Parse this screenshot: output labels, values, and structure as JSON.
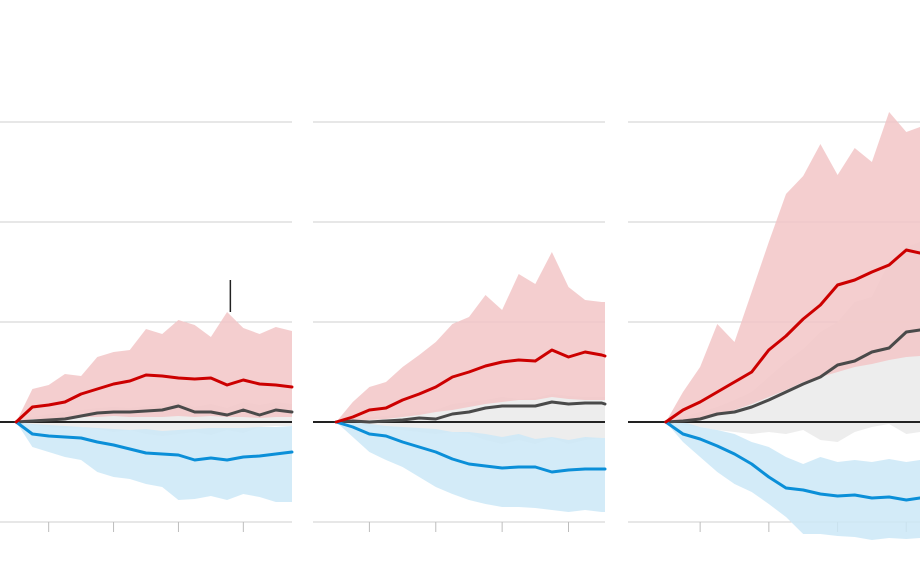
{
  "chart_data": {
    "type": "area",
    "colors": {
      "up_line": "#cc0000",
      "up_band": "#f2c5c7",
      "mid_line": "#4a4a4a",
      "mid_band": "#eaeaea",
      "down_line": "#0b8fd8",
      "down_band": "#cbe8f7",
      "grid": "#cfcfcf",
      "zero_line": "#222222"
    },
    "ylim": [
      -1,
      3
    ],
    "yticks": [
      -1,
      0,
      1,
      2,
      3
    ],
    "grid": true,
    "panels": [
      {
        "xlim": [
          -0.5,
          8.5
        ],
        "x_start": 0,
        "xticks": [
          1,
          3,
          5,
          7
        ],
        "marker_x": 6.6,
        "up": {
          "x": [
            0,
            0.5,
            1,
            1.5,
            2,
            2.5,
            3,
            3.5,
            4,
            4.5,
            5,
            5.5,
            6,
            6.5,
            7,
            7.5,
            8,
            8.5
          ],
          "values": [
            0,
            0.15,
            0.17,
            0.2,
            0.28,
            0.33,
            0.38,
            0.41,
            0.47,
            0.46,
            0.44,
            0.43,
            0.44,
            0.37,
            0.42,
            0.38,
            0.37,
            0.35
          ],
          "high": [
            0,
            0.33,
            0.37,
            0.48,
            0.46,
            0.65,
            0.7,
            0.72,
            0.93,
            0.88,
            1.02,
            0.97,
            0.85,
            1.1,
            0.94,
            0.88,
            0.95,
            0.91
          ],
          "low": [
            0,
            0.03,
            0.03,
            0.02,
            0.05,
            0.05,
            0.06,
            0.05,
            0.05,
            0.05,
            0.06,
            0.05,
            0.06,
            0.05,
            0.05,
            0.04,
            0.05,
            0.05
          ]
        },
        "mid": {
          "x": [
            0,
            0.5,
            1,
            1.5,
            2,
            2.5,
            3,
            3.5,
            4,
            4.5,
            5,
            5.5,
            6,
            6.5,
            7,
            7.5,
            8,
            8.5
          ],
          "values": [
            0,
            0.01,
            0.02,
            0.03,
            0.06,
            0.09,
            0.1,
            0.1,
            0.11,
            0.12,
            0.16,
            0.1,
            0.1,
            0.07,
            0.12,
            0.07,
            0.12,
            0.1
          ],
          "high": [
            0,
            0.05,
            0.08,
            0.1,
            0.12,
            0.14,
            0.15,
            0.14,
            0.16,
            0.18,
            0.2,
            0.15,
            0.18,
            0.14,
            0.2,
            0.17,
            0.2,
            0.18
          ],
          "low": [
            0,
            -0.03,
            -0.05,
            -0.06,
            -0.05,
            -0.07,
            -0.1,
            -0.08,
            -0.12,
            -0.14,
            -0.12,
            -0.1,
            -0.13,
            -0.08,
            -0.11,
            -0.05,
            -0.04,
            -0.04
          ]
        },
        "down": {
          "x": [
            0,
            0.5,
            1,
            1.5,
            2,
            2.5,
            3,
            3.5,
            4,
            4.5,
            5,
            5.5,
            6,
            6.5,
            7,
            7.5,
            8,
            8.5
          ],
          "values": [
            0,
            -0.12,
            -0.14,
            -0.15,
            -0.16,
            -0.2,
            -0.23,
            -0.27,
            -0.31,
            -0.32,
            -0.33,
            -0.38,
            -0.36,
            -0.38,
            -0.35,
            -0.34,
            -0.32,
            -0.3
          ],
          "high": [
            0,
            -0.02,
            -0.03,
            -0.04,
            -0.05,
            -0.06,
            -0.07,
            -0.08,
            -0.07,
            -0.09,
            -0.08,
            -0.07,
            -0.06,
            -0.06,
            -0.06,
            -0.05,
            -0.05,
            -0.04
          ],
          "low": [
            0,
            -0.25,
            -0.3,
            -0.35,
            -0.38,
            -0.5,
            -0.55,
            -0.57,
            -0.62,
            -0.65,
            -0.78,
            -0.77,
            -0.74,
            -0.78,
            -0.72,
            -0.75,
            -0.8,
            -0.8
          ]
        }
      },
      {
        "xlim": [
          -0.7,
          8.1
        ],
        "x_start": 0,
        "xticks": [
          1,
          3,
          5,
          7
        ],
        "up": {
          "x": [
            0,
            0.5,
            1,
            1.5,
            2,
            2.5,
            3,
            3.5,
            4,
            4.5,
            5,
            5.5,
            6,
            6.5,
            7,
            7.5,
            8,
            8.1
          ],
          "values": [
            0,
            0.05,
            0.12,
            0.14,
            0.22,
            0.28,
            0.35,
            0.45,
            0.5,
            0.56,
            0.6,
            0.62,
            0.61,
            0.72,
            0.65,
            0.7,
            0.67,
            0.66
          ],
          "high": [
            0,
            0.2,
            0.35,
            0.4,
            0.55,
            0.67,
            0.8,
            0.98,
            1.05,
            1.27,
            1.12,
            1.48,
            1.38,
            1.7,
            1.35,
            1.22,
            1.2,
            1.2
          ],
          "low": [
            0,
            0.0,
            0.02,
            0.03,
            0.05,
            0.07,
            0.1,
            0.12,
            0.15,
            0.18,
            0.2,
            0.22,
            0.22,
            0.25,
            0.23,
            0.22,
            0.22,
            0.22
          ]
        },
        "mid": {
          "x": [
            0,
            0.5,
            1,
            1.5,
            2,
            2.5,
            3,
            3.5,
            4,
            4.5,
            5,
            5.5,
            6,
            6.5,
            7,
            7.5,
            8,
            8.1
          ],
          "values": [
            0,
            0.01,
            0.0,
            0.01,
            0.02,
            0.04,
            0.03,
            0.08,
            0.1,
            0.14,
            0.16,
            0.16,
            0.16,
            0.2,
            0.18,
            0.19,
            0.19,
            0.18
          ],
          "high": [
            0,
            0.03,
            0.05,
            0.06,
            0.08,
            0.1,
            0.12,
            0.18,
            0.2,
            0.22,
            0.25,
            0.23,
            0.24,
            0.28,
            0.26,
            0.25,
            0.25,
            0.25
          ],
          "low": [
            0,
            -0.02,
            -0.05,
            -0.06,
            -0.08,
            -0.1,
            -0.12,
            -0.1,
            -0.12,
            -0.18,
            -0.22,
            -0.18,
            -0.22,
            -0.16,
            -0.22,
            -0.18,
            -0.16,
            -0.16
          ]
        },
        "down": {
          "x": [
            0,
            0.5,
            1,
            1.5,
            2,
            2.5,
            3,
            3.5,
            4,
            4.5,
            5,
            5.5,
            6,
            6.5,
            7,
            7.5,
            8,
            8.1
          ],
          "values": [
            0,
            -0.05,
            -0.12,
            -0.14,
            -0.2,
            -0.25,
            -0.3,
            -0.37,
            -0.42,
            -0.44,
            -0.46,
            -0.45,
            -0.45,
            -0.5,
            -0.48,
            -0.47,
            -0.47,
            -0.47
          ],
          "high": [
            0,
            0.0,
            -0.02,
            -0.04,
            -0.05,
            -0.06,
            -0.07,
            -0.1,
            -0.1,
            -0.12,
            -0.15,
            -0.12,
            -0.17,
            -0.15,
            -0.18,
            -0.15,
            -0.16,
            -0.16
          ],
          "low": [
            0,
            -0.15,
            -0.3,
            -0.38,
            -0.45,
            -0.55,
            -0.65,
            -0.72,
            -0.78,
            -0.82,
            -0.85,
            -0.85,
            -0.86,
            -0.88,
            -0.9,
            -0.88,
            -0.9,
            -0.9
          ]
        }
      },
      {
        "xlim": [
          -1.1,
          7.4
        ],
        "x_start": 0,
        "xticks": [
          1,
          3,
          5,
          7
        ],
        "up": {
          "x": [
            0,
            0.5,
            1,
            1.5,
            2,
            2.5,
            3,
            3.5,
            4,
            4.5,
            5,
            5.5,
            6,
            6.5,
            7,
            7.4
          ],
          "values": [
            0,
            0.12,
            0.2,
            0.3,
            0.4,
            0.5,
            0.72,
            0.86,
            1.03,
            1.17,
            1.37,
            1.42,
            1.5,
            1.57,
            1.72,
            1.69
          ],
          "high": [
            0,
            0.3,
            0.55,
            0.98,
            0.8,
            1.3,
            1.8,
            2.28,
            2.46,
            2.78,
            2.47,
            2.74,
            2.6,
            3.1,
            2.9,
            2.95
          ],
          "low": [
            0,
            0.02,
            0.04,
            0.06,
            0.12,
            0.18,
            0.25,
            0.32,
            0.4,
            0.45,
            0.5,
            0.55,
            0.58,
            0.62,
            0.65,
            0.66
          ]
        },
        "mid": {
          "x": [
            0,
            0.5,
            1,
            1.5,
            2,
            2.5,
            3,
            3.5,
            4,
            4.5,
            5,
            5.5,
            6,
            6.5,
            7,
            7.4
          ],
          "values": [
            0,
            0.01,
            0.03,
            0.08,
            0.1,
            0.15,
            0.22,
            0.3,
            0.38,
            0.45,
            0.57,
            0.61,
            0.7,
            0.74,
            0.9,
            0.92
          ],
          "high": [
            0,
            0.05,
            0.1,
            0.15,
            0.22,
            0.3,
            0.45,
            0.6,
            0.73,
            0.9,
            1.0,
            1.2,
            1.25,
            1.6,
            1.75,
            1.8
          ],
          "low": [
            0,
            -0.03,
            -0.05,
            -0.08,
            -0.1,
            -0.12,
            -0.1,
            -0.12,
            -0.08,
            -0.18,
            -0.2,
            -0.1,
            -0.05,
            -0.02,
            -0.12,
            -0.1
          ]
        },
        "down": {
          "x": [
            0,
            0.5,
            1,
            1.5,
            2,
            2.5,
            3,
            3.5,
            4,
            4.5,
            5,
            5.5,
            6,
            6.5,
            7,
            7.4
          ],
          "values": [
            0,
            -0.12,
            -0.17,
            -0.24,
            -0.32,
            -0.42,
            -0.55,
            -0.66,
            -0.68,
            -0.72,
            -0.74,
            -0.73,
            -0.76,
            -0.75,
            -0.78,
            -0.76
          ],
          "high": [
            0,
            0.0,
            -0.05,
            -0.08,
            -0.12,
            -0.2,
            -0.25,
            -0.35,
            -0.42,
            -0.35,
            -0.4,
            -0.38,
            -0.4,
            -0.37,
            -0.4,
            -0.38
          ],
          "low": [
            0,
            -0.2,
            -0.35,
            -0.5,
            -0.62,
            -0.7,
            -0.82,
            -0.95,
            -1.12,
            -1.12,
            -1.14,
            -1.15,
            -1.18,
            -1.16,
            -1.17,
            -1.16
          ]
        }
      }
    ]
  }
}
